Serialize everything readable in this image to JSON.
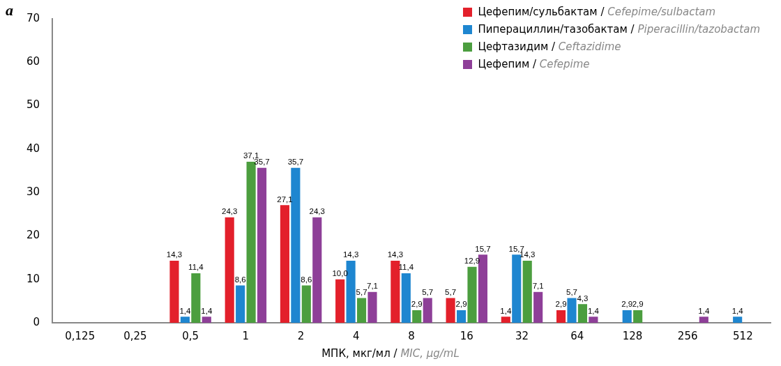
{
  "chart_data": {
    "type": "bar",
    "annotations": [
      "a"
    ],
    "xlabel": "МПК, мкг/мл / MIC, μg/mL",
    "categories": [
      "0,125",
      "0,25",
      "0,5",
      "1",
      "2",
      "4",
      "8",
      "16",
      "32",
      "64",
      "128",
      "256",
      "512"
    ],
    "series": [
      {
        "name": "Цефепим/сульбактам / Cefepime/sulbactam",
        "color": "#e3202b",
        "values": [
          null,
          null,
          14.3,
          24.3,
          27.1,
          10.0,
          14.3,
          5.7,
          1.4,
          2.9,
          null,
          null,
          null
        ],
        "value_labels": [
          null,
          null,
          "14,3",
          "24,3",
          "27,1",
          "10,0",
          "14,3",
          "5,7",
          "1,4",
          "2,9",
          null,
          null,
          null
        ]
      },
      {
        "name": "Пиперациллин/тазобактам / Piperacillin/tazobactam",
        "color": "#1e86d0",
        "values": [
          null,
          null,
          1.4,
          8.6,
          35.7,
          14.3,
          11.4,
          2.9,
          15.7,
          5.7,
          2.9,
          null,
          1.4
        ],
        "value_labels": [
          null,
          null,
          "1,4",
          "8,6",
          "35,7",
          "14,3",
          "11,4",
          "2,9",
          "15,7",
          "5,7",
          "2,9",
          null,
          "1,4"
        ]
      },
      {
        "name": "Цефтазидим / Ceftazidime",
        "color": "#4c9e3f",
        "values": [
          null,
          null,
          11.4,
          37.1,
          8.6,
          5.7,
          2.9,
          12.9,
          14.3,
          4.3,
          2.9,
          null,
          null
        ],
        "value_labels": [
          null,
          null,
          "11,4",
          "37,1",
          "8,6",
          "5,7",
          "2,9",
          "12,9",
          "14,3",
          "4,3",
          "2,9",
          null,
          null
        ]
      },
      {
        "name": "Цефепим / Cefepime",
        "color": "#8e3f98",
        "values": [
          null,
          null,
          1.4,
          35.7,
          24.3,
          7.1,
          5.7,
          15.7,
          7.1,
          1.4,
          null,
          1.4,
          null
        ],
        "value_labels": [
          null,
          null,
          "1,4",
          "35,7",
          "24,3",
          "7,1",
          "5,7",
          "15,7",
          "7,1",
          "1,4",
          null,
          "1,4",
          null
        ]
      }
    ],
    "ylim": [
      0,
      70
    ],
    "yticks": [
      0,
      10,
      20,
      30,
      40,
      50,
      60,
      70
    ],
    "grid": false,
    "legend": "top right"
  }
}
